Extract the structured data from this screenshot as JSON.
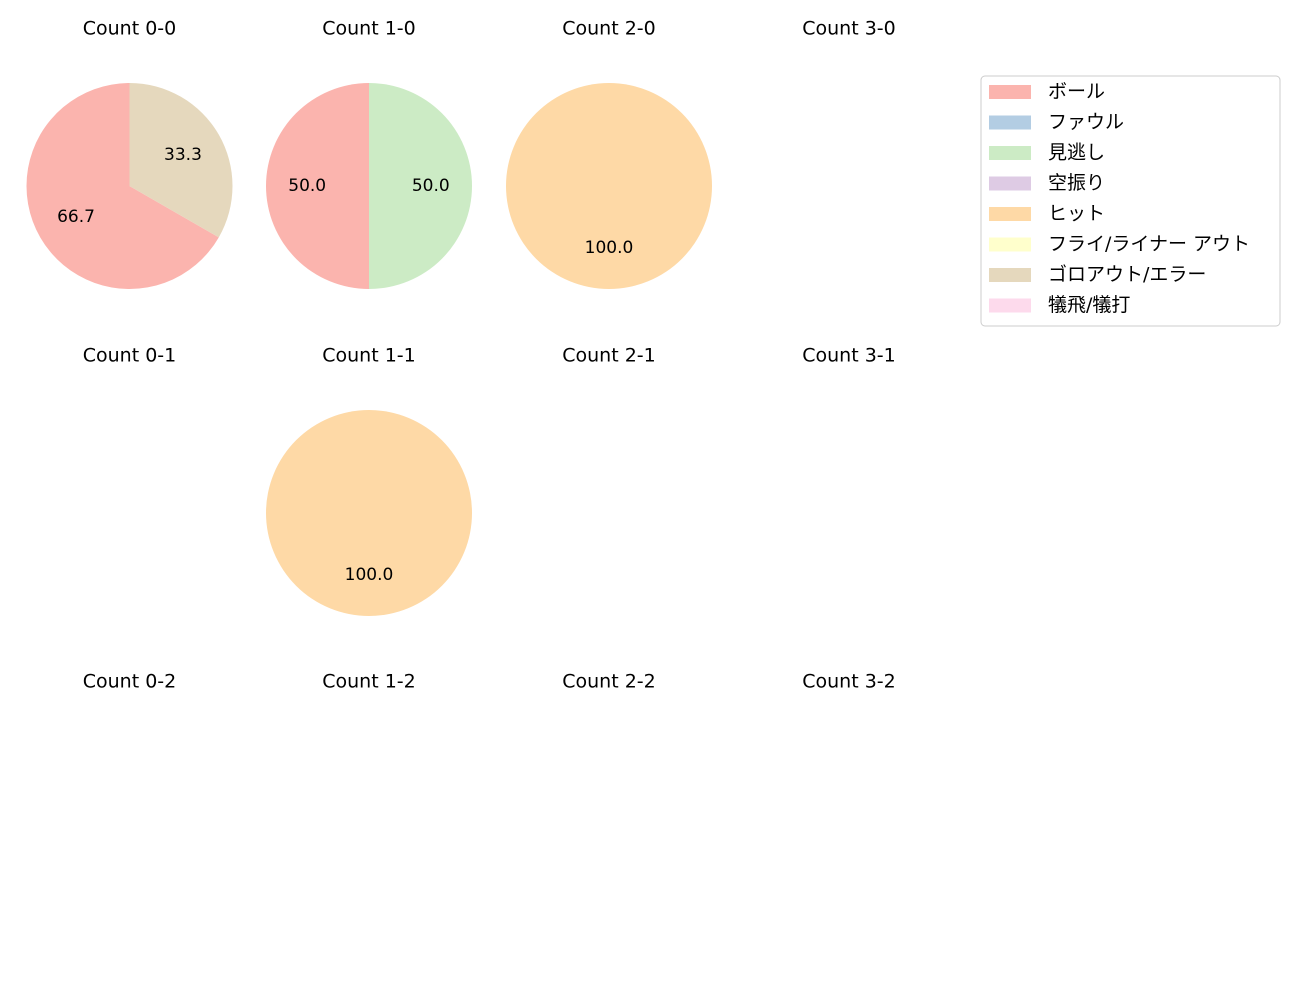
{
  "chart_data": {
    "type": "pie",
    "categories": [
      "ボール",
      "ファウル",
      "見逃し",
      "空振り",
      "ヒット",
      "フライ/ライナー アウト",
      "ゴロアウト/エラー",
      "犠飛/犠打"
    ],
    "colors": [
      "#fbb4ae",
      "#b3cde3",
      "#ccebc5",
      "#decbe4",
      "#fed9a6",
      "#ffffcc",
      "#e5d8bd",
      "#fddaec"
    ],
    "legend": {
      "placement": "upper-right"
    },
    "panels": [
      {
        "title": "Count 0-0",
        "values": [
          66.7,
          0,
          0,
          0,
          0,
          0,
          33.3,
          0
        ],
        "labels": [
          "66.7",
          "",
          "",
          "",
          "",
          "",
          "33.3",
          ""
        ]
      },
      {
        "title": "Count 1-0",
        "values": [
          50.0,
          0,
          50.0,
          0,
          0,
          0,
          0,
          0
        ],
        "labels": [
          "50.0",
          "",
          "50.0",
          "",
          "",
          "",
          "",
          ""
        ]
      },
      {
        "title": "Count 2-0",
        "values": [
          0,
          0,
          0,
          0,
          100.0,
          0,
          0,
          0
        ],
        "labels": [
          "",
          "",
          "",
          "",
          "100.0",
          "",
          "",
          ""
        ]
      },
      {
        "title": "Count 3-0",
        "values": [],
        "labels": []
      },
      {
        "title": "Count 0-1",
        "values": [],
        "labels": []
      },
      {
        "title": "Count 1-1",
        "values": [
          0,
          0,
          0,
          0,
          100.0,
          0,
          0,
          0
        ],
        "labels": [
          "",
          "",
          "",
          "",
          "100.0",
          "",
          "",
          ""
        ]
      },
      {
        "title": "Count 2-1",
        "values": [],
        "labels": []
      },
      {
        "title": "Count 3-1",
        "values": [],
        "labels": []
      },
      {
        "title": "Count 0-2",
        "values": [],
        "labels": []
      },
      {
        "title": "Count 1-2",
        "values": [],
        "labels": []
      },
      {
        "title": "Count 2-2",
        "values": [],
        "labels": []
      },
      {
        "title": "Count 3-2",
        "values": [],
        "labels": []
      }
    ]
  }
}
